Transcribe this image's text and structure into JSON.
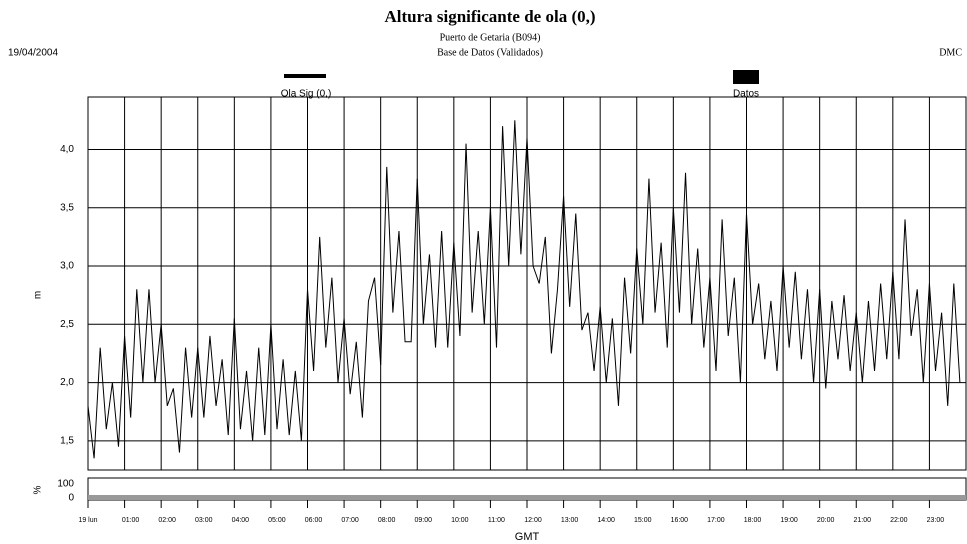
{
  "header": {
    "date": "19/04/2004",
    "organization": "DMC"
  },
  "chart_data": [
    {
      "type": "line",
      "title": "Altura significante de ola (0,)",
      "subtitle": [
        "Puerto de Getaria (B094)",
        "Base de Datos (Validados)"
      ],
      "xlabel": "GMT",
      "ylabel": "m",
      "xlim": [
        0,
        1440
      ],
      "xticks": [
        {
          "value": 0,
          "label": "19 lun"
        },
        {
          "value": 60,
          "label": "01:00"
        },
        {
          "value": 120,
          "label": "02:00"
        },
        {
          "value": 180,
          "label": "03:00"
        },
        {
          "value": 240,
          "label": "04:00"
        },
        {
          "value": 300,
          "label": "05:00"
        },
        {
          "value": 360,
          "label": "06:00"
        },
        {
          "value": 420,
          "label": "07:00"
        },
        {
          "value": 480,
          "label": "08:00"
        },
        {
          "value": 540,
          "label": "09:00"
        },
        {
          "value": 600,
          "label": "10:00"
        },
        {
          "value": 660,
          "label": "11:00"
        },
        {
          "value": 720,
          "label": "12:00"
        },
        {
          "value": 780,
          "label": "13:00"
        },
        {
          "value": 840,
          "label": "14:00"
        },
        {
          "value": 900,
          "label": "15:00"
        },
        {
          "value": 960,
          "label": "16:00"
        },
        {
          "value": 1020,
          "label": "17:00"
        },
        {
          "value": 1080,
          "label": "18:00"
        },
        {
          "value": 1140,
          "label": "19:00"
        },
        {
          "value": 1200,
          "label": "20:00"
        },
        {
          "value": 1260,
          "label": "21:00"
        },
        {
          "value": 1320,
          "label": "22:00"
        },
        {
          "value": 1380,
          "label": "23:00"
        }
      ],
      "ylim": [
        1.25,
        4.45
      ],
      "yticks": [
        {
          "value": 1.5,
          "label": "1,5"
        },
        {
          "value": 2.0,
          "label": "2,0"
        },
        {
          "value": 2.5,
          "label": "2,5"
        },
        {
          "value": 3.0,
          "label": "3,0"
        },
        {
          "value": 3.5,
          "label": "3,5"
        },
        {
          "value": 4.0,
          "label": "4,0"
        }
      ],
      "grid": true,
      "x": [
        0,
        10,
        20,
        30,
        40,
        50,
        60,
        70,
        80,
        90,
        100,
        110,
        120,
        130,
        140,
        150,
        160,
        170,
        180,
        190,
        200,
        210,
        220,
        230,
        240,
        250,
        260,
        270,
        280,
        290,
        300,
        310,
        320,
        330,
        340,
        350,
        360,
        370,
        380,
        390,
        400,
        410,
        420,
        430,
        440,
        450,
        460,
        470,
        480,
        490,
        500,
        510,
        520,
        530,
        540,
        550,
        560,
        570,
        580,
        590,
        600,
        610,
        620,
        630,
        640,
        650,
        660,
        670,
        680,
        690,
        700,
        710,
        720,
        730,
        740,
        750,
        760,
        770,
        780,
        790,
        800,
        810,
        820,
        830,
        840,
        850,
        860,
        870,
        880,
        890,
        900,
        910,
        920,
        930,
        940,
        950,
        960,
        970,
        980,
        990,
        1000,
        1010,
        1020,
        1030,
        1040,
        1050,
        1060,
        1070,
        1080,
        1090,
        1100,
        1110,
        1120,
        1130,
        1140,
        1150,
        1160,
        1170,
        1180,
        1190,
        1200,
        1210,
        1220,
        1230,
        1240,
        1250,
        1260,
        1270,
        1280,
        1290,
        1300,
        1310,
        1320,
        1330,
        1340,
        1350,
        1360,
        1370,
        1380,
        1390,
        1400,
        1410,
        1420,
        1430
      ],
      "series": [
        {
          "name": "Ola Sig (0,)",
          "color": "#000000",
          "values": [
            1.8,
            1.35,
            2.3,
            1.6,
            2.0,
            1.45,
            2.4,
            1.7,
            2.8,
            2.0,
            2.8,
            2.0,
            2.5,
            1.8,
            1.95,
            1.4,
            2.3,
            1.7,
            2.3,
            1.7,
            2.4,
            1.8,
            2.2,
            1.55,
            2.55,
            1.6,
            2.1,
            1.5,
            2.3,
            1.55,
            2.5,
            1.6,
            2.2,
            1.55,
            2.1,
            1.5,
            2.8,
            2.1,
            3.25,
            2.3,
            2.9,
            2.0,
            2.55,
            1.9,
            2.35,
            1.7,
            2.7,
            2.9,
            2.15,
            3.85,
            2.6,
            3.3,
            2.35,
            2.35,
            3.75,
            2.5,
            3.1,
            2.3,
            3.3,
            2.3,
            3.2,
            2.4,
            4.05,
            2.6,
            3.3,
            2.5,
            3.5,
            2.3,
            4.2,
            3.0,
            4.25,
            3.1,
            4.1,
            3.0,
            2.85,
            3.25,
            2.25,
            2.8,
            3.6,
            2.65,
            3.45,
            2.45,
            2.6,
            2.1,
            2.65,
            2.0,
            2.55,
            1.8,
            2.9,
            2.25,
            3.15,
            2.5,
            3.75,
            2.6,
            3.2,
            2.3,
            3.5,
            2.6,
            3.8,
            2.5,
            3.15,
            2.3,
            2.9,
            2.1,
            3.4,
            2.4,
            2.9,
            2.0,
            3.45,
            2.5,
            2.85,
            2.2,
            2.7,
            2.1,
            3.0,
            2.3,
            2.95,
            2.2,
            2.8,
            2.0,
            2.8,
            1.95,
            2.7,
            2.2,
            2.75,
            2.1,
            2.6,
            2.0,
            2.7,
            2.1,
            2.85,
            2.2,
            2.95,
            2.2,
            3.4,
            2.4,
            2.8,
            2.0,
            2.85,
            2.1,
            2.6,
            1.8,
            2.85,
            2.0
          ]
        }
      ]
    },
    {
      "type": "panel",
      "ylabel": "%",
      "ylim": [
        0,
        100
      ],
      "yticks": [
        0,
        100
      ],
      "series": [
        {
          "name": "Datos",
          "color": "#000000"
        }
      ]
    }
  ]
}
